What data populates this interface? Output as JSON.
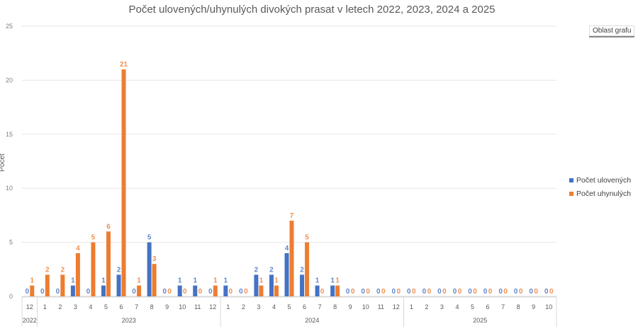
{
  "chart_data": {
    "type": "bar",
    "title": "Počet ulovených/uhynulých divokých prasat v letech 2022, 2023, 2024 a 2025",
    "ylabel": "Počet",
    "xlabel": "",
    "ylim": [
      0,
      25
    ],
    "yticks": [
      0,
      5,
      10,
      15,
      20,
      25
    ],
    "grid": true,
    "legend_position": "right",
    "years": [
      {
        "label": "2022",
        "months": [
          "12"
        ]
      },
      {
        "label": "2023",
        "months": [
          "1",
          "2",
          "3",
          "4",
          "5",
          "6",
          "7",
          "8",
          "9",
          "10",
          "11",
          "12"
        ]
      },
      {
        "label": "2024",
        "months": [
          "1",
          "2",
          "3",
          "4",
          "5",
          "6",
          "7",
          "8",
          "9",
          "10",
          "11",
          "12"
        ]
      },
      {
        "label": "2025",
        "months": [
          "1",
          "2",
          "3",
          "4",
          "5",
          "6",
          "7",
          "8",
          "9",
          "10"
        ]
      }
    ],
    "series": [
      {
        "name": "Počet ulovených",
        "color": "#4472C4",
        "values": [
          0,
          0,
          0,
          1,
          0,
          1,
          2,
          0,
          5,
          0,
          1,
          1,
          0,
          1,
          0,
          2,
          2,
          4,
          2,
          1,
          1,
          0,
          0,
          0,
          0,
          0,
          0,
          0,
          0,
          0,
          0,
          0,
          0,
          0,
          0
        ]
      },
      {
        "name": "Počet uhynulých",
        "color": "#ED7D31",
        "values": [
          1,
          2,
          2,
          4,
          5,
          6,
          21,
          1,
          3,
          0,
          0,
          0,
          1,
          0,
          0,
          1,
          1,
          7,
          5,
          0,
          1,
          0,
          0,
          0,
          0,
          0,
          0,
          0,
          0,
          0,
          0,
          0,
          0,
          0,
          0
        ]
      }
    ]
  },
  "tooltip": "Oblast grafu"
}
